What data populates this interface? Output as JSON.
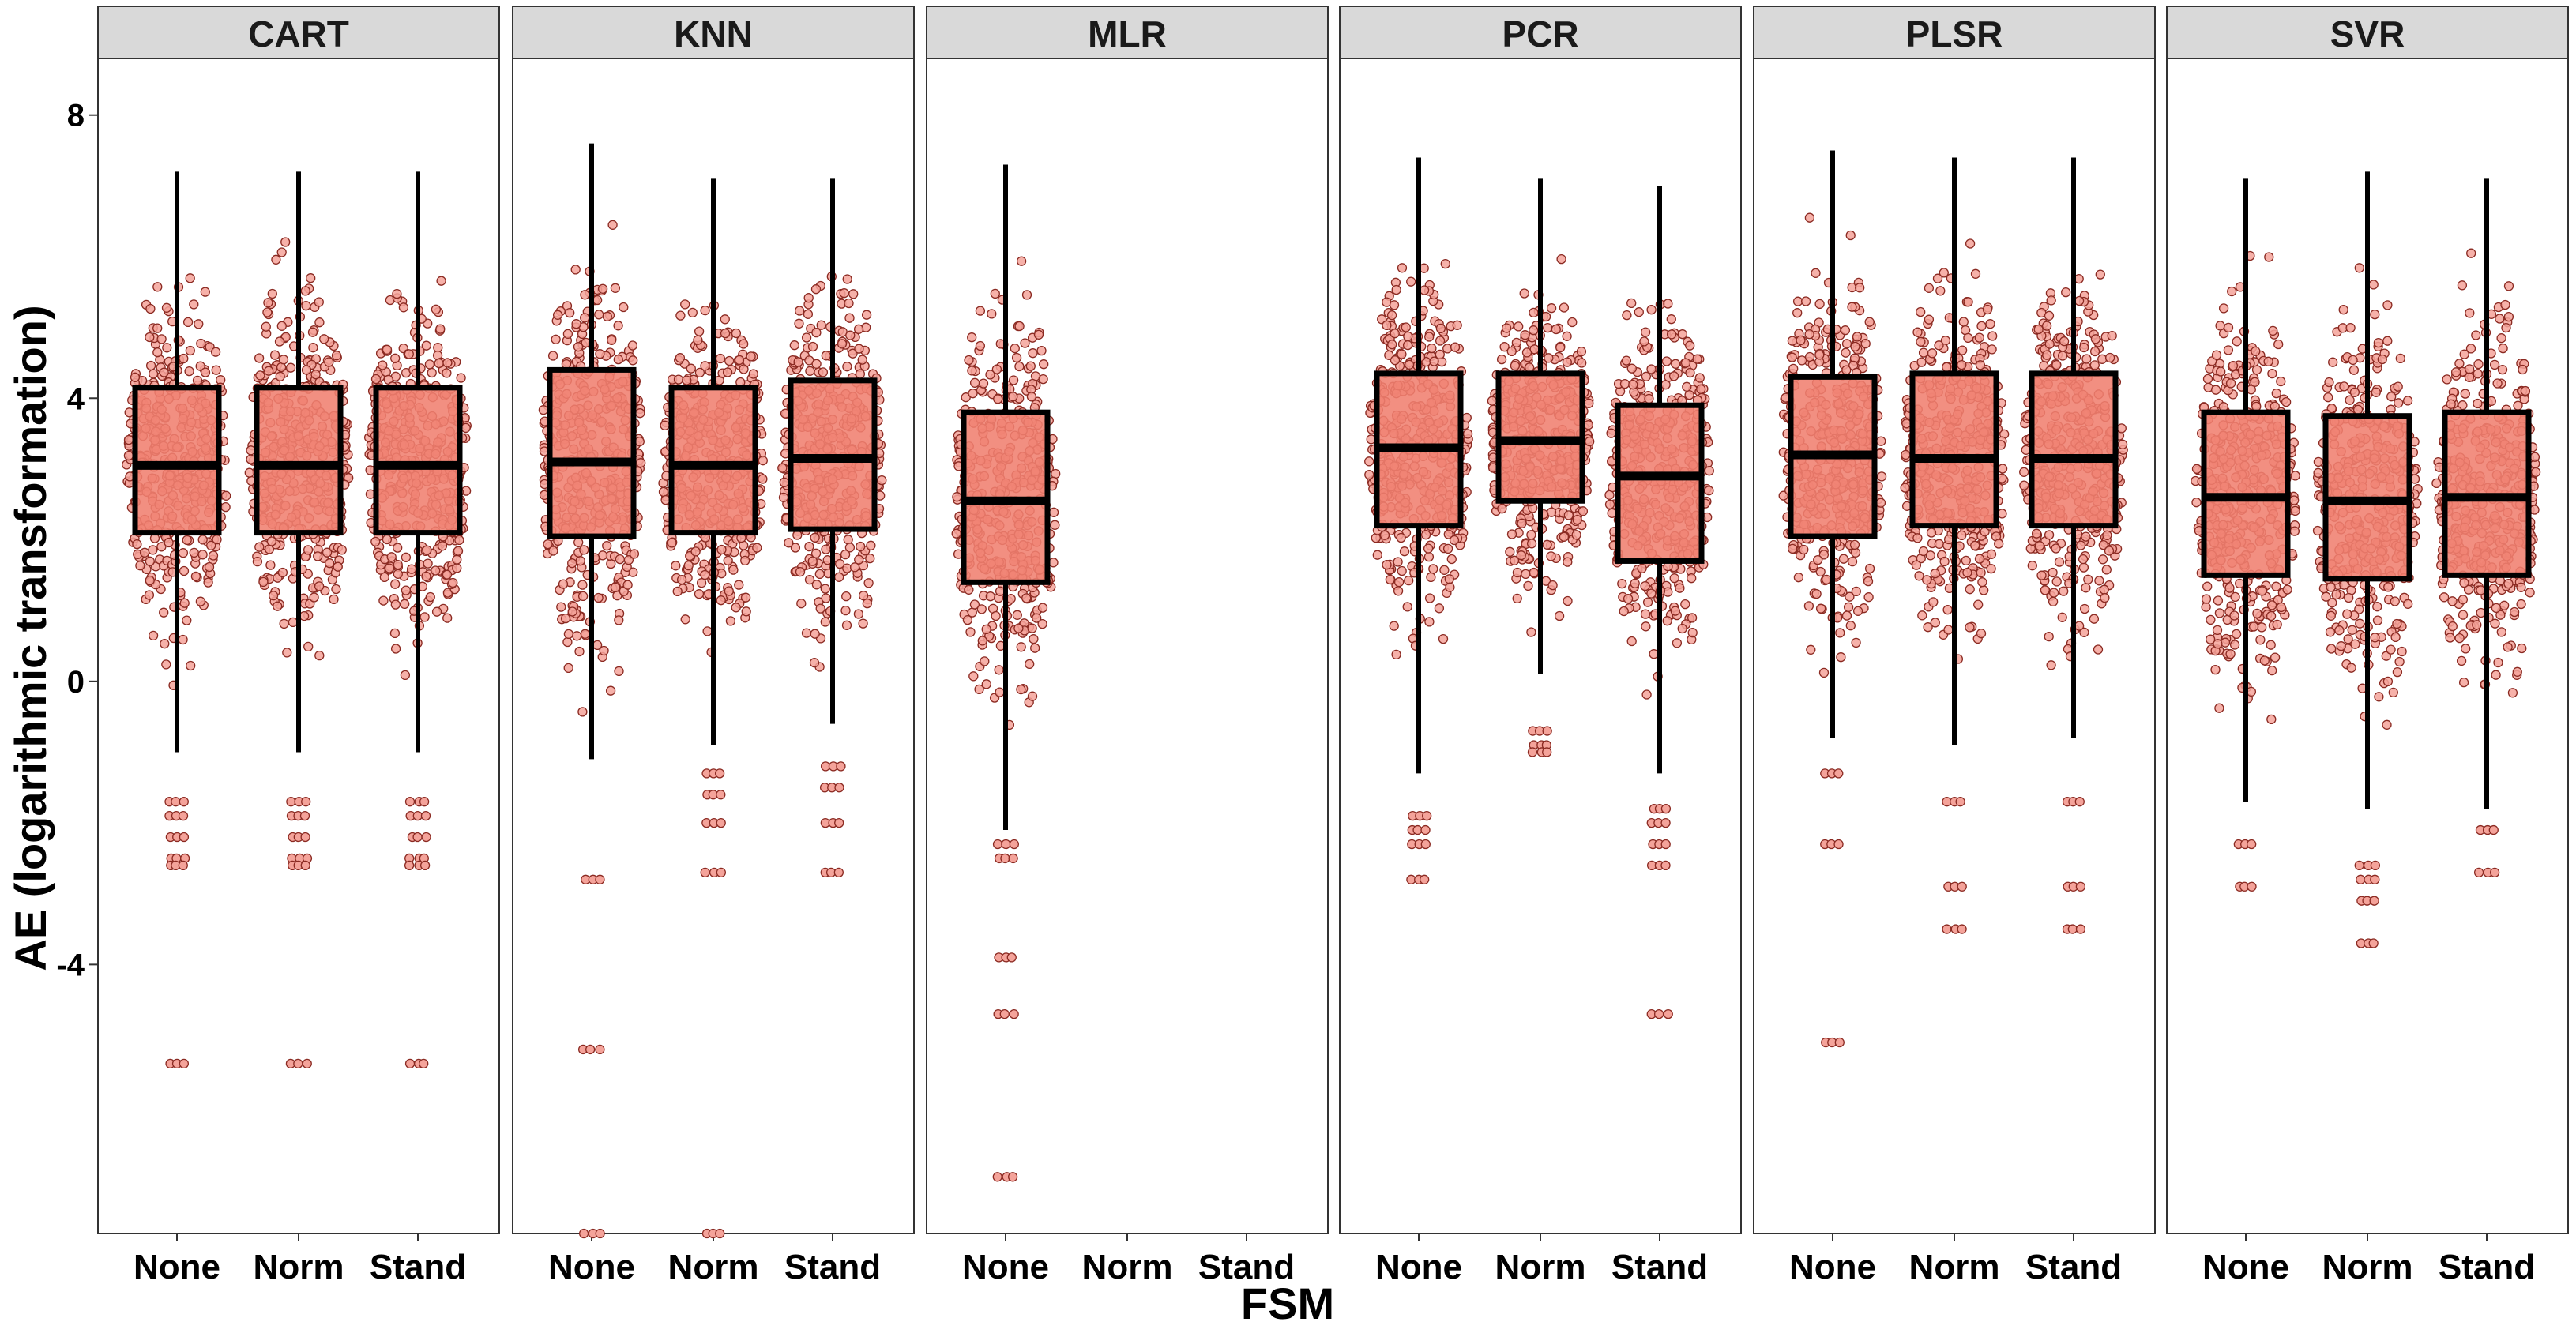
{
  "chart_data": {
    "type": "boxplot",
    "title": "",
    "xlabel": "FSM",
    "ylabel": "AE (logarithmic transformation)",
    "ylim": [
      -7.8,
      8.8
    ],
    "yticks": [
      -4,
      0,
      4,
      8
    ],
    "ytick_labels": [
      "-4",
      "0",
      "4",
      "8"
    ],
    "grid": false,
    "legend": "none",
    "categories": [
      "None",
      "Norm",
      "Stand"
    ],
    "colors": {
      "box_fill": "#f08070",
      "point_fill": "#f4a39a",
      "point_edge": "#8b2a22",
      "strip_fill": "#d9d9d9",
      "line": "#000000"
    },
    "panels": [
      {
        "name": "CART",
        "boxes": [
          {
            "category": "None",
            "whisker_low": -1.0,
            "q1": 2.1,
            "median": 3.05,
            "q3": 4.15,
            "whisker_high": 7.2
          },
          {
            "category": "Norm",
            "whisker_low": -1.0,
            "q1": 2.1,
            "median": 3.05,
            "q3": 4.15,
            "whisker_high": 7.2
          },
          {
            "category": "Stand",
            "whisker_low": -1.0,
            "q1": 2.1,
            "median": 3.05,
            "q3": 4.15,
            "whisker_high": 7.2
          }
        ],
        "outliers": [
          {
            "category": "None",
            "values": [
              -1.7,
              -1.9,
              -2.2,
              -2.5,
              -2.6,
              -5.4
            ]
          },
          {
            "category": "Norm",
            "values": [
              -1.7,
              -1.9,
              -2.2,
              -2.5,
              -2.6,
              -5.4
            ]
          },
          {
            "category": "Stand",
            "values": [
              -1.7,
              -1.9,
              -2.2,
              -2.5,
              -2.6,
              -5.4
            ]
          }
        ]
      },
      {
        "name": "KNN",
        "boxes": [
          {
            "category": "None",
            "whisker_low": -1.1,
            "q1": 2.05,
            "median": 3.1,
            "q3": 4.4,
            "whisker_high": 7.6
          },
          {
            "category": "Norm",
            "whisker_low": -0.9,
            "q1": 2.1,
            "median": 3.05,
            "q3": 4.15,
            "whisker_high": 7.1
          },
          {
            "category": "Stand",
            "whisker_low": -0.6,
            "q1": 2.15,
            "median": 3.15,
            "q3": 4.25,
            "whisker_high": 7.1
          }
        ],
        "outliers": [
          {
            "category": "None",
            "values": [
              -2.8,
              -5.2,
              -7.8
            ]
          },
          {
            "category": "Norm",
            "values": [
              -1.3,
              -1.6,
              -2.0,
              -2.7,
              -7.8
            ]
          },
          {
            "category": "Stand",
            "values": [
              -1.2,
              -1.5,
              -2.0,
              -2.7
            ]
          }
        ]
      },
      {
        "name": "MLR",
        "boxes": [
          {
            "category": "None",
            "whisker_low": -2.1,
            "q1": 1.4,
            "median": 2.55,
            "q3": 3.8,
            "whisker_high": 7.3
          }
        ],
        "outliers": [
          {
            "category": "None",
            "values": [
              -2.3,
              -2.5,
              -3.9,
              -4.7,
              -7.0
            ]
          }
        ]
      },
      {
        "name": "PCR",
        "boxes": [
          {
            "category": "None",
            "whisker_low": -1.3,
            "q1": 2.2,
            "median": 3.3,
            "q3": 4.35,
            "whisker_high": 7.4
          },
          {
            "category": "Norm",
            "whisker_low": 0.1,
            "q1": 2.55,
            "median": 3.4,
            "q3": 4.35,
            "whisker_high": 7.1
          },
          {
            "category": "Stand",
            "whisker_low": -1.3,
            "q1": 1.7,
            "median": 2.9,
            "q3": 3.9,
            "whisker_high": 7.0
          }
        ],
        "outliers": [
          {
            "category": "None",
            "values": [
              -1.9,
              -2.1,
              -2.3,
              -2.8
            ]
          },
          {
            "category": "Norm",
            "values": [
              -0.7,
              -0.9,
              -1.0
            ]
          },
          {
            "category": "Stand",
            "values": [
              -1.8,
              -2.0,
              -2.3,
              -2.6,
              -4.7
            ]
          }
        ]
      },
      {
        "name": "PLSR",
        "boxes": [
          {
            "category": "None",
            "whisker_low": -0.8,
            "q1": 2.05,
            "median": 3.2,
            "q3": 4.3,
            "whisker_high": 7.5
          },
          {
            "category": "Norm",
            "whisker_low": -0.9,
            "q1": 2.2,
            "median": 3.15,
            "q3": 4.35,
            "whisker_high": 7.4
          },
          {
            "category": "Stand",
            "whisker_low": -0.8,
            "q1": 2.2,
            "median": 3.15,
            "q3": 4.35,
            "whisker_high": 7.4
          }
        ],
        "outliers": [
          {
            "category": "None",
            "values": [
              -1.3,
              -2.3,
              -5.1
            ]
          },
          {
            "category": "Norm",
            "values": [
              -1.7,
              -2.9,
              -3.5
            ]
          },
          {
            "category": "Stand",
            "values": [
              -1.7,
              -2.9,
              -3.5
            ]
          }
        ]
      },
      {
        "name": "SVR",
        "boxes": [
          {
            "category": "None",
            "whisker_low": -1.7,
            "q1": 1.5,
            "median": 2.6,
            "q3": 3.8,
            "whisker_high": 7.1
          },
          {
            "category": "Norm",
            "whisker_low": -1.8,
            "q1": 1.45,
            "median": 2.55,
            "q3": 3.75,
            "whisker_high": 7.2
          },
          {
            "category": "Stand",
            "whisker_low": -1.8,
            "q1": 1.5,
            "median": 2.6,
            "q3": 3.8,
            "whisker_high": 7.1
          }
        ],
        "outliers": [
          {
            "category": "None",
            "values": [
              -2.3,
              -2.9
            ]
          },
          {
            "category": "Norm",
            "values": [
              -2.6,
              -2.8,
              -3.1,
              -3.7
            ]
          },
          {
            "category": "Stand",
            "values": [
              -2.1,
              -2.7
            ]
          }
        ]
      }
    ]
  }
}
